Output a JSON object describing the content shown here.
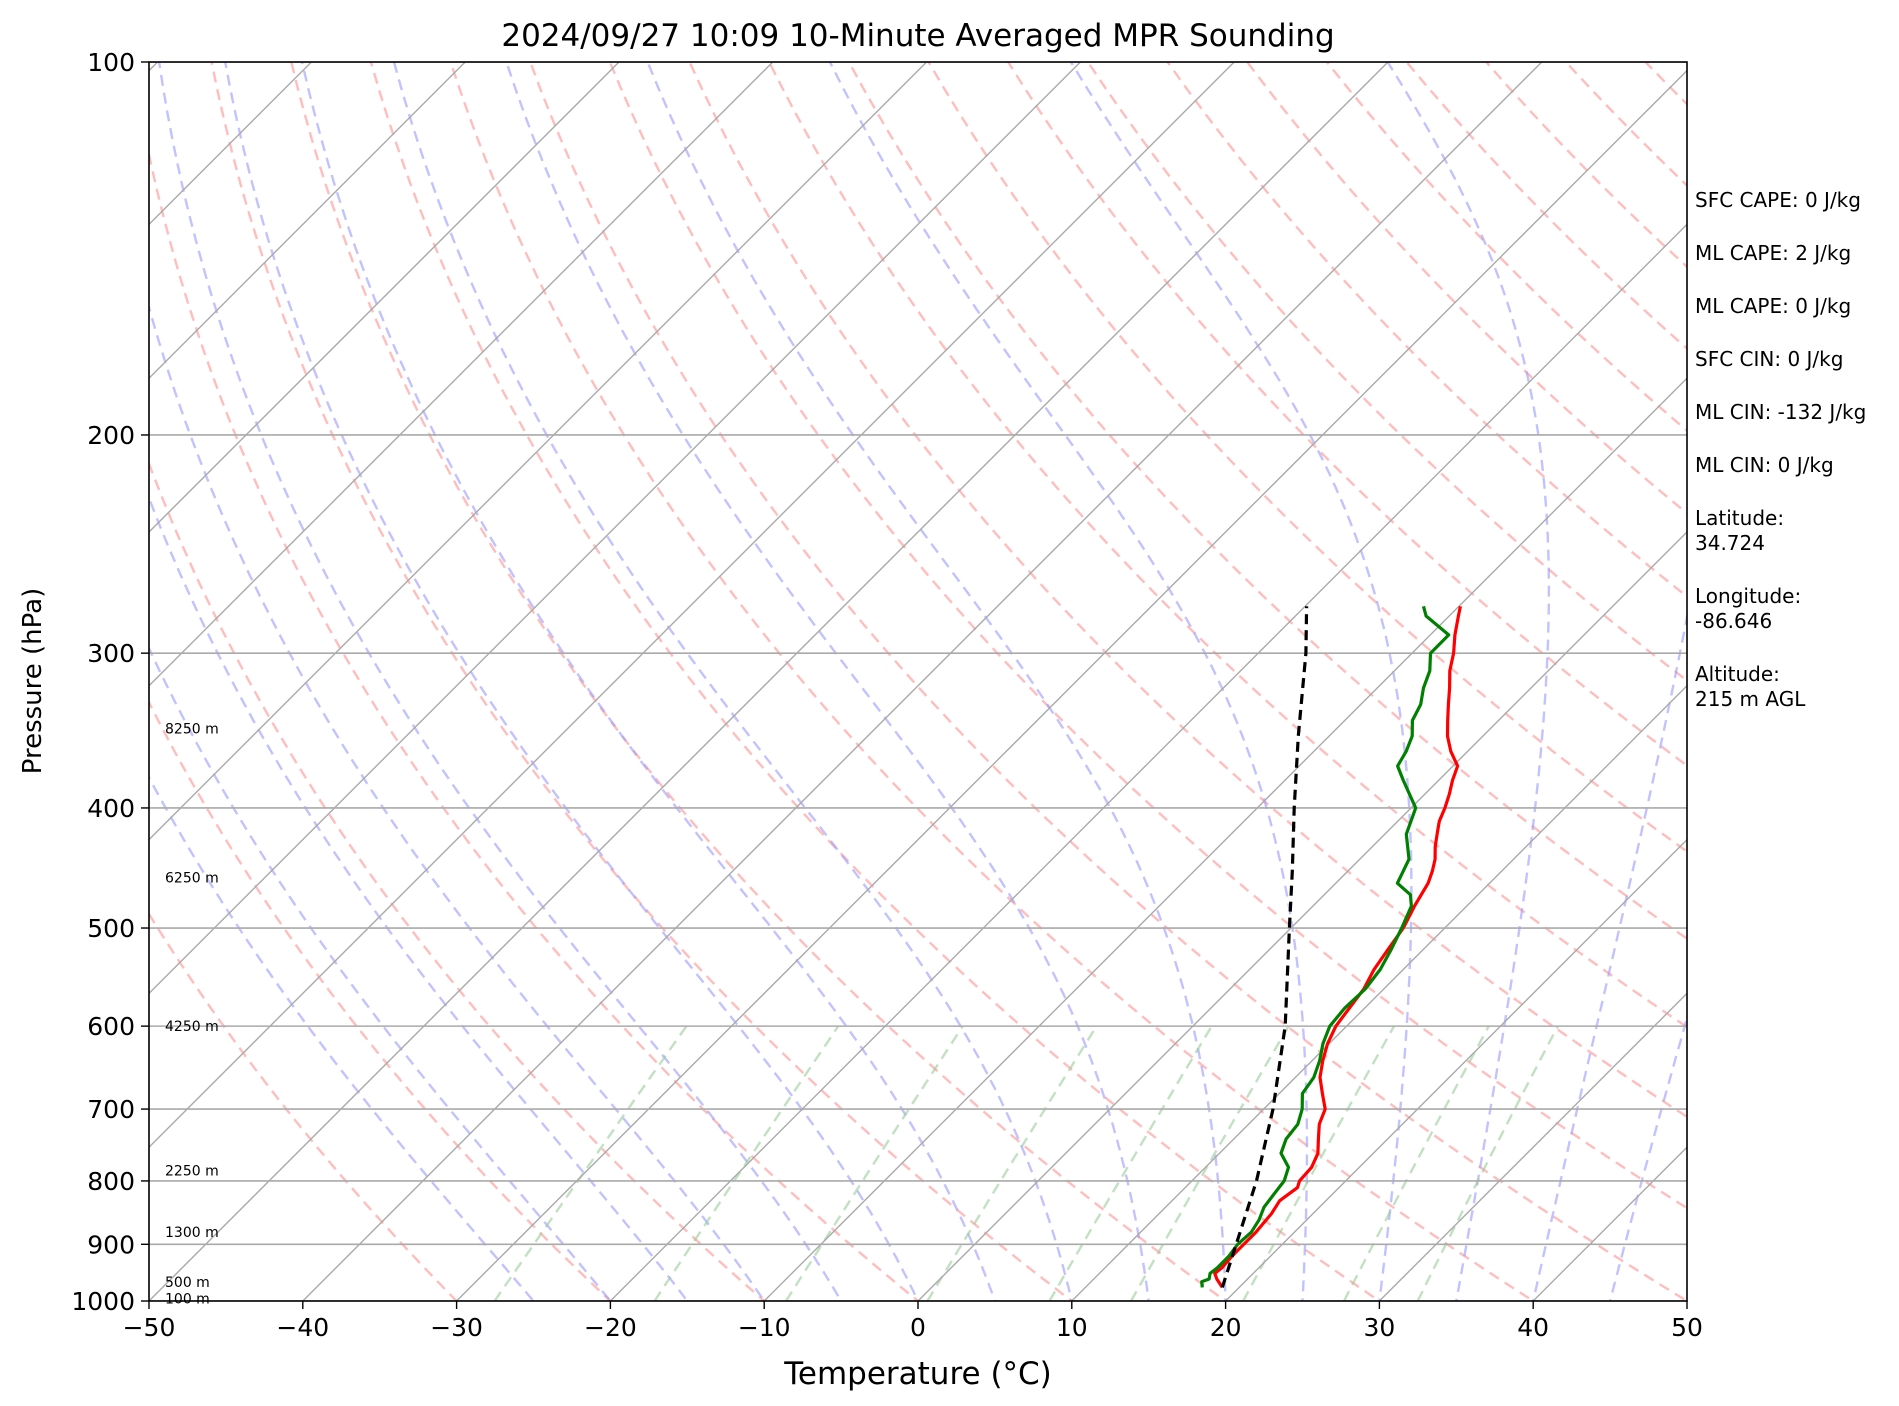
{
  "chart_data": {
    "type": "line",
    "title": "2024/09/27 10:09 10-Minute Averaged MPR Sounding",
    "xlabel": "Temperature (°C)",
    "ylabel": "Pressure (hPa)",
    "xlim": [
      -50,
      50
    ],
    "ylim": [
      1000,
      100
    ],
    "yscale": "log",
    "skew": true,
    "grid": true,
    "x_ticks": [
      "−50",
      "−40",
      "−30",
      "−20",
      "−10",
      "0",
      "10",
      "20",
      "30",
      "40",
      "50"
    ],
    "x_tick_values": [
      -50,
      -40,
      -30,
      -20,
      -10,
      0,
      10,
      20,
      30,
      40,
      50
    ],
    "y_ticks": [
      "100",
      "200",
      "300",
      "400",
      "500",
      "600",
      "700",
      "800",
      "900",
      "1000"
    ],
    "y_tick_values": [
      100,
      200,
      300,
      400,
      500,
      600,
      700,
      800,
      900,
      1000
    ],
    "height_labels": [
      {
        "text": "8250 m",
        "p": 345
      },
      {
        "text": "6250 m",
        "p": 455
      },
      {
        "text": "4250 m",
        "p": 600
      },
      {
        "text": "2250 m",
        "p": 785
      },
      {
        "text": "1300 m",
        "p": 880
      },
      {
        "text": "500 m",
        "p": 965
      },
      {
        "text": "100 m",
        "p": 995
      }
    ],
    "series": [
      {
        "color": "#ff0000",
        "p": [
          975,
          960,
          950,
          940,
          920,
          900,
          880,
          850,
          830,
          810,
          800,
          780,
          760,
          740,
          720,
          700,
          680,
          660,
          640,
          620,
          600,
          580,
          560,
          540,
          520,
          500,
          480,
          460,
          450,
          440,
          430,
          420,
          410,
          400,
          390,
          380,
          370,
          360,
          350,
          340,
          330,
          320,
          310,
          300,
          290,
          280,
          275
        ],
        "values": [
          18.9,
          18.0,
          17.5,
          17.6,
          17.5,
          17.5,
          17.5,
          17.3,
          17.0,
          17.3,
          17.0,
          16.9,
          16.4,
          15.5,
          14.6,
          14.0,
          12.8,
          11.6,
          10.7,
          9.9,
          9.3,
          9.0,
          8.7,
          8.1,
          7.7,
          7.3,
          6.6,
          6.0,
          5.5,
          4.9,
          4.1,
          3.4,
          2.7,
          2.2,
          1.6,
          0.9,
          0.3,
          -1.1,
          -2.3,
          -3.3,
          -4.3,
          -5.3,
          -6.4,
          -7.3,
          -8.4,
          -9.4,
          -9.9
        ]
      },
      {
        "color": "#008000",
        "p": [
          975,
          965,
          960,
          950,
          940,
          920,
          900,
          880,
          860,
          840,
          820,
          800,
          780,
          760,
          740,
          720,
          700,
          680,
          660,
          640,
          620,
          600,
          580,
          560,
          540,
          520,
          500,
          480,
          470,
          460,
          440,
          420,
          400,
          380,
          370,
          360,
          350,
          340,
          330,
          320,
          310,
          300,
          290,
          280,
          275
        ],
        "values": [
          17.6,
          17.2,
          17.5,
          17.2,
          17.3,
          17.3,
          17.1,
          17.2,
          16.9,
          16.4,
          16.2,
          16.0,
          15.4,
          14.0,
          13.4,
          13.2,
          12.5,
          11.5,
          11.2,
          10.5,
          9.6,
          8.9,
          8.7,
          8.8,
          8.5,
          7.9,
          7.2,
          6.4,
          5.6,
          4.0,
          3.2,
          1.4,
          0.3,
          -2.3,
          -3.6,
          -4.0,
          -4.6,
          -5.6,
          -6.1,
          -7.0,
          -7.7,
          -8.8,
          -8.8,
          -11.5,
          -12.3
        ]
      },
      {
        "color": "#000000",
        "dashed": true,
        "p": [
          975,
          900,
          800,
          700,
          600,
          500,
          450,
          400,
          350,
          300,
          275
        ],
        "values": [
          18.9,
          17.0,
          14.2,
          10.6,
          6.0,
          -0.1,
          -3.6,
          -7.6,
          -12.0,
          -16.9,
          -19.9
        ]
      }
    ]
  },
  "info_panel": {
    "rows": [
      "SFC CAPE: 0 J/kg",
      "ML CAPE: 2 J/kg",
      "ML CAPE: 0 J/kg",
      "SFC CIN: 0 J/kg",
      "ML CIN: -132 J/kg",
      "ML CIN: 0 J/kg"
    ],
    "pairs": [
      {
        "label": "Latitude:",
        "value": "34.724"
      },
      {
        "label": "Longitude:",
        "value": "-86.646"
      },
      {
        "label": "Altitude:",
        "value": "215 m AGL"
      }
    ]
  }
}
